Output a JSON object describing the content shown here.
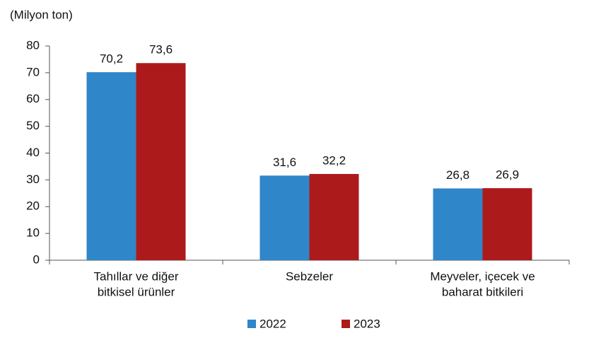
{
  "chart_data": {
    "type": "bar",
    "y_label": "(Milyon ton)",
    "categories": [
      [
        "Tahıllar ve diğer",
        "bitkisel ürünler"
      ],
      [
        "Sebzeler"
      ],
      [
        "Meyveler, içecek ve",
        "baharat  bitkileri"
      ]
    ],
    "series": [
      {
        "name": "2022",
        "color": "#2f86c8",
        "values": [
          70.2,
          31.6,
          26.8
        ],
        "value_labels": [
          "70,2",
          "31,6",
          "26,8"
        ]
      },
      {
        "name": "2023",
        "color": "#ad1a1c",
        "values": [
          73.6,
          32.2,
          26.9
        ],
        "value_labels": [
          "73,6",
          "32,2",
          "26,9"
        ]
      }
    ],
    "ylim": [
      0,
      80
    ],
    "yticks": [
      0,
      10,
      20,
      30,
      40,
      50,
      60,
      70,
      80
    ],
    "grid": false,
    "legend": "bottom"
  }
}
